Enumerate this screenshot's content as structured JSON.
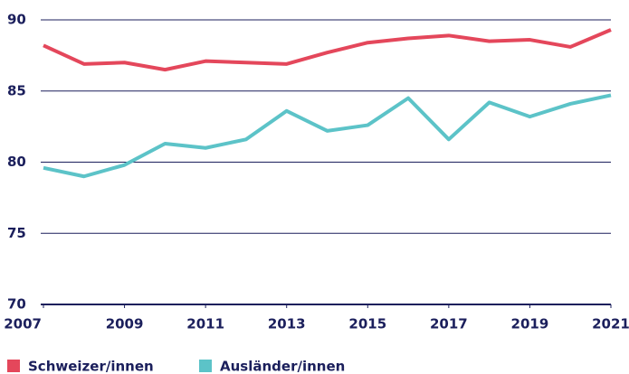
{
  "chart_data": {
    "type": "line",
    "x": [
      2007,
      2008,
      2009,
      2010,
      2011,
      2012,
      2013,
      2014,
      2015,
      2016,
      2017,
      2018,
      2019,
      2020,
      2021
    ],
    "series": [
      {
        "name": "Schweizer/innen",
        "color": "#e4475b",
        "values": [
          88.2,
          86.9,
          87.0,
          86.5,
          87.1,
          87.0,
          86.9,
          87.7,
          88.4,
          88.7,
          88.9,
          88.5,
          88.6,
          88.1,
          89.3
        ]
      },
      {
        "name": "Ausländer/innen",
        "color": "#5cc3c8",
        "values": [
          79.6,
          79.0,
          79.8,
          81.3,
          81.0,
          81.6,
          83.6,
          82.2,
          82.6,
          84.5,
          81.6,
          84.2,
          83.2,
          84.1,
          84.7
        ]
      }
    ],
    "xlim": [
      2007,
      2021
    ],
    "xticks": [
      2007,
      2009,
      2011,
      2013,
      2015,
      2017,
      2019,
      2021
    ],
    "ylim": [
      70,
      90
    ],
    "yticks": [
      70,
      75,
      80,
      85,
      90
    ],
    "grid": true,
    "legend": "bottom"
  }
}
